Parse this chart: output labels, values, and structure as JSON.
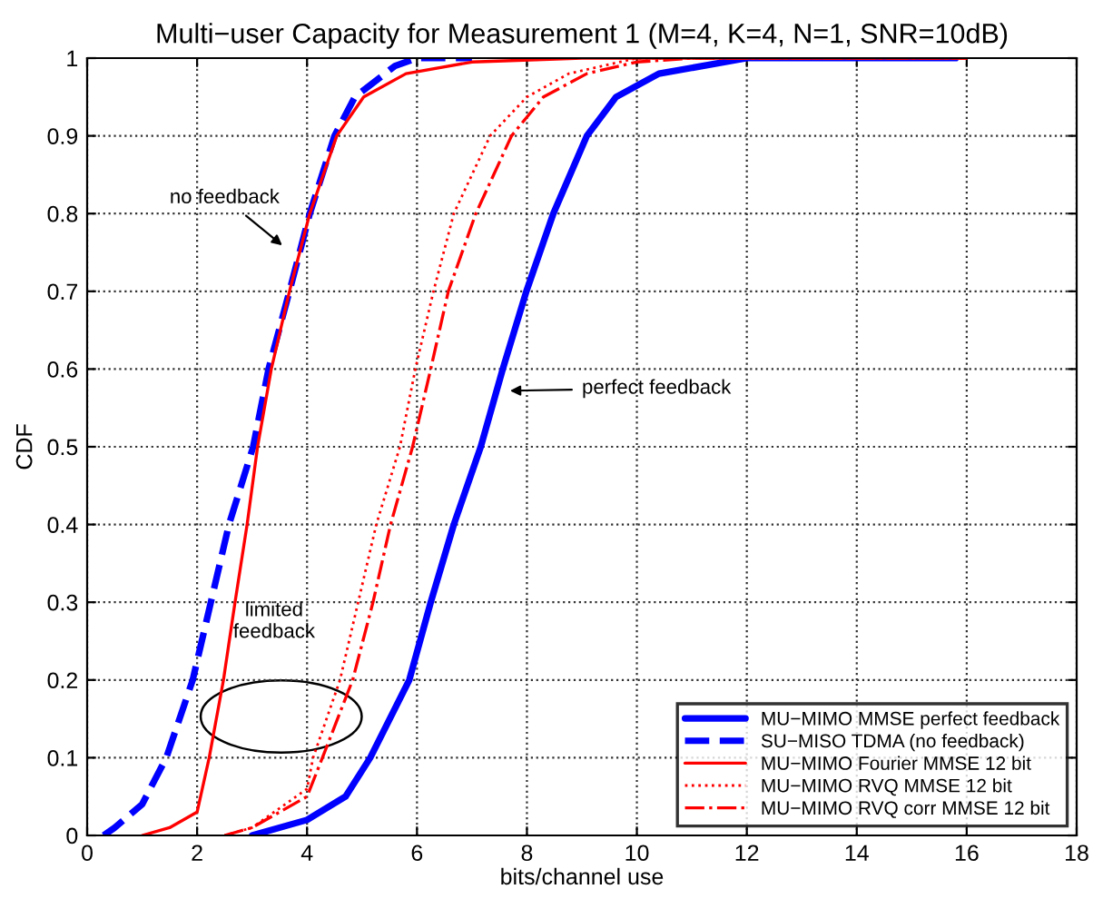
{
  "chart_data": {
    "type": "line",
    "title": "Multi−user Capacity for Measurement 1 (M=4, K=4, N=1, SNR=10dB)",
    "xlabel": "bits/channel use",
    "ylabel": "CDF",
    "xlim": [
      0,
      18
    ],
    "ylim": [
      0,
      1
    ],
    "xticks": [
      0,
      2,
      4,
      6,
      8,
      10,
      12,
      14,
      16,
      18
    ],
    "yticks": [
      0,
      0.1,
      0.2,
      0.3,
      0.4,
      0.5,
      0.6,
      0.7,
      0.8,
      0.9,
      1
    ],
    "grid": true,
    "legend": "bottom right",
    "marker": "none",
    "series": [
      {
        "name": "MU−MIMO MMSE perfect feedback",
        "color": "#0000ff",
        "line_style": "solid",
        "x": [
          3,
          4,
          4.7,
          5.15,
          5.86,
          6.25,
          6.67,
          7.16,
          7.56,
          7.99,
          8.48,
          9.09,
          9.62,
          10.4,
          12,
          15.8
        ],
        "values": [
          0,
          0.02,
          0.05,
          0.1,
          0.2,
          0.3,
          0.4,
          0.5,
          0.6,
          0.7,
          0.8,
          0.9,
          0.95,
          0.98,
          1,
          1
        ]
      },
      {
        "name": "SU−MISO TDMA (no feedback)",
        "color": "#0000ff",
        "line_style": "dashed",
        "x": [
          0.3,
          0.5,
          1,
          1.44,
          1.92,
          2.25,
          2.58,
          3.02,
          3.3,
          3.68,
          4.05,
          4.5,
          4.87,
          5.6,
          6,
          7
        ],
        "values": [
          0,
          0.01,
          0.04,
          0.1,
          0.2,
          0.3,
          0.4,
          0.5,
          0.6,
          0.7,
          0.8,
          0.9,
          0.95,
          0.99,
          1,
          1
        ]
      },
      {
        "name": "MU−MIMO Fourier MMSE 12 bit",
        "color": "#ff0000",
        "line_style": "solid",
        "x": [
          1,
          1.5,
          2,
          2.22,
          2.48,
          2.69,
          2.91,
          3.1,
          3.35,
          3.68,
          4.05,
          4.54,
          5.03,
          5.8,
          7,
          9,
          16
        ],
        "values": [
          0,
          0.01,
          0.03,
          0.1,
          0.2,
          0.3,
          0.4,
          0.5,
          0.6,
          0.7,
          0.8,
          0.9,
          0.95,
          0.98,
          0.995,
          1,
          1
        ]
      },
      {
        "name": "MU−MIMO RVQ MMSE 12 bit",
        "color": "#ff0000",
        "line_style": "dotted",
        "x": [
          2.5,
          3,
          4,
          4.11,
          4.6,
          4.93,
          5.26,
          5.69,
          5.97,
          6.3,
          6.67,
          7.33,
          8,
          8.76,
          10,
          16
        ],
        "values": [
          0,
          0.01,
          0.06,
          0.1,
          0.2,
          0.3,
          0.4,
          0.5,
          0.6,
          0.7,
          0.8,
          0.9,
          0.95,
          0.98,
          1,
          1
        ]
      },
      {
        "name": "MU−MIMO RVQ corr MMSE 12 bit",
        "color": "#ff0000",
        "line_style": "dashdot",
        "x": [
          2.5,
          3,
          4,
          4.28,
          4.83,
          5.2,
          5.52,
          5.92,
          6.25,
          6.57,
          7.07,
          7.72,
          8.3,
          9.09,
          10,
          11,
          16
        ],
        "values": [
          0,
          0.01,
          0.05,
          0.1,
          0.2,
          0.3,
          0.4,
          0.5,
          0.6,
          0.7,
          0.8,
          0.9,
          0.95,
          0.98,
          0.995,
          1,
          1
        ]
      }
    ],
    "annotations": [
      "no feedback",
      "perfect feedback",
      "limited\nfeedback"
    ]
  }
}
